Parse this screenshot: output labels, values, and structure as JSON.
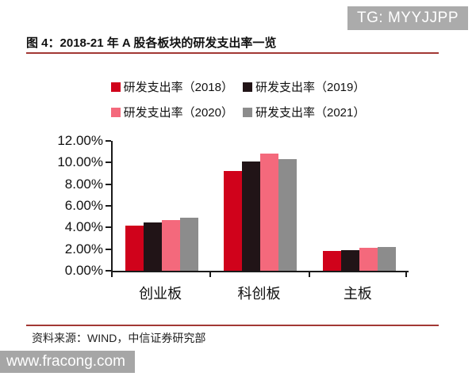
{
  "badge": {
    "text": "TG: MYYJJPP",
    "bg": "#ABABAB"
  },
  "figure": {
    "title": "图 4：2018-21 年 A 股各板块的研发支出率一览",
    "rule_color": "#A23834"
  },
  "legend": {
    "rows": [
      [
        {
          "label": "研发支出率（2018）",
          "color": "#D0021B"
        },
        {
          "label": "研发支出率（2019）",
          "color": "#211417"
        }
      ],
      [
        {
          "label": "研发支出率（2020）",
          "color": "#F4697C"
        },
        {
          "label": "研发支出率（2021）",
          "color": "#8C8C8C"
        }
      ]
    ]
  },
  "chart_data": {
    "type": "bar",
    "title": "2018-21 年 A 股各板块的研发支出率一览",
    "categories": [
      "创业板",
      "科创板",
      "主板"
    ],
    "series": [
      {
        "name": "研发支出率（2018）",
        "color": "#D0021B",
        "values": [
          4.2,
          9.2,
          1.8
        ]
      },
      {
        "name": "研发支出率（2019）",
        "color": "#211417",
        "values": [
          4.5,
          10.1,
          1.9
        ]
      },
      {
        "name": "研发支出率（2020）",
        "color": "#F4697C",
        "values": [
          4.7,
          10.8,
          2.1
        ]
      },
      {
        "name": "研发支出率（2021）",
        "color": "#8C8C8C",
        "values": [
          4.9,
          10.3,
          2.2
        ]
      }
    ],
    "xlabel": "",
    "ylabel": "",
    "ylim": [
      0,
      12
    ],
    "ytick_step": 2,
    "ytick_labels": [
      "0.00%",
      "2.00%",
      "4.00%",
      "6.00%",
      "8.00%",
      "10.00%",
      "12.00%"
    ],
    "grid": false,
    "legend_position": "top"
  },
  "source": {
    "text": "资料来源：WIND，中信证券研究部"
  },
  "watermark": {
    "text": "www.fracong.com",
    "bg": "#A6A6A6"
  }
}
